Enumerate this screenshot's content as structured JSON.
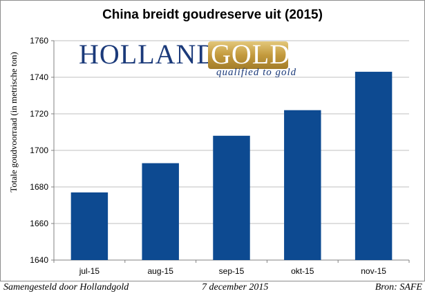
{
  "chart_data": {
    "type": "bar",
    "title": "China breidt goudreserve uit (2015)",
    "ylabel": "Totale goudvoorraad (in metrische ton)",
    "xlabel": "",
    "categories": [
      "jul-15",
      "aug-15",
      "sep-15",
      "okt-15",
      "nov-15"
    ],
    "values": [
      1677,
      1693,
      1708,
      1722,
      1743
    ],
    "ylim": [
      1640,
      1760
    ],
    "yticks": [
      1640,
      1660,
      1680,
      1700,
      1720,
      1740,
      1760
    ],
    "bar_color": "#0d4a91",
    "grid": true
  },
  "logo": {
    "holland": "HOLLAND",
    "gold": "GOLD",
    "tagline": "qualified to gold",
    "navy": "#1b3a7a",
    "gold_color": "#c8a34a"
  },
  "footer": {
    "left": "Samengesteld door Hollandgold",
    "center": "7 december 2015",
    "right": "Bron: SAFE"
  }
}
